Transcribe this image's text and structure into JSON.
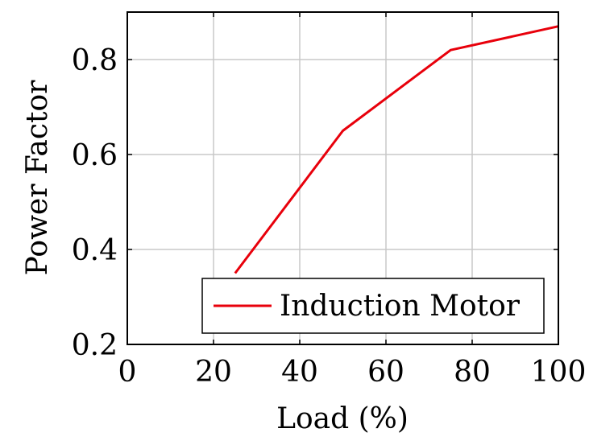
{
  "chart_data": {
    "type": "line",
    "title": "",
    "xlabel": "Load (%)",
    "ylabel": "Power Factor",
    "xlim": [
      0,
      100
    ],
    "ylim": [
      0.2,
      0.9
    ],
    "xticks": [
      0,
      20,
      40,
      60,
      80,
      100
    ],
    "yticks": [
      0.2,
      0.4,
      0.6,
      0.8
    ],
    "xtick_labels": [
      "0",
      "20",
      "40",
      "60",
      "80",
      "100"
    ],
    "ytick_labels": [
      "0.2",
      "0.4",
      "0.6",
      "0.8"
    ],
    "grid": true,
    "legend_position": "bottom-right",
    "series": [
      {
        "name": "Induction Motor",
        "color": "#e8000b",
        "x": [
          25,
          50,
          75,
          100
        ],
        "y": [
          0.35,
          0.65,
          0.82,
          0.87
        ]
      }
    ]
  }
}
